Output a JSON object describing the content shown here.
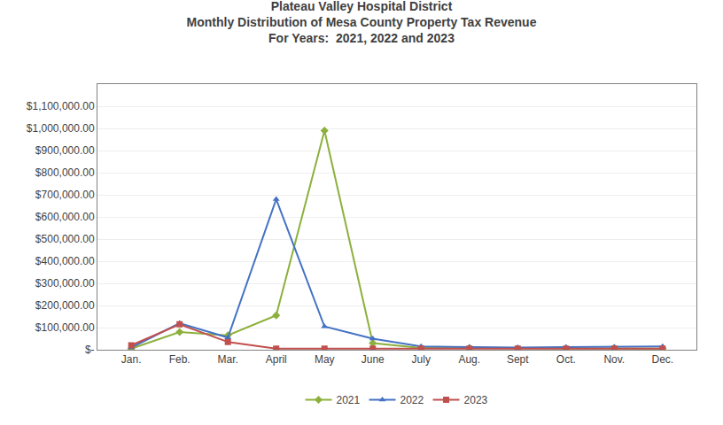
{
  "chart_data": {
    "type": "line",
    "title": "Plateau Valley Hospital District\nMonthly Distribution of Mesa County Property Tax Revenue\nFor Years:  2021, 2022 and 2023",
    "categories": [
      "Jan.",
      "Feb.",
      "Mar.",
      "April",
      "May",
      "June",
      "July",
      "Aug.",
      "Sept",
      "Oct.",
      "Nov.",
      "Dec."
    ],
    "series": [
      {
        "name": "2021",
        "color": "#8db03d",
        "marker": "diamond",
        "values": [
          5000,
          80000,
          65000,
          155000,
          990000,
          30000,
          8000,
          8000,
          5000,
          5000,
          8000,
          5000
        ]
      },
      {
        "name": "2022",
        "color": "#4472c4",
        "marker": "triangle-up",
        "values": [
          10000,
          120000,
          55000,
          680000,
          105000,
          50000,
          15000,
          12000,
          10000,
          12000,
          12000,
          15000
        ]
      },
      {
        "name": "2023",
        "color": "#c0504d",
        "marker": "square",
        "values": [
          20000,
          115000,
          35000,
          5000,
          5000,
          5000,
          5000,
          5000,
          5000,
          5000,
          5000,
          5000
        ]
      }
    ],
    "ylim": [
      0,
      1200000
    ],
    "yticks": [
      {
        "value": 0,
        "label": "$-"
      },
      {
        "value": 100000,
        "label": "$100,000.00"
      },
      {
        "value": 200000,
        "label": "$200,000.00"
      },
      {
        "value": 300000,
        "label": "$300,000.00"
      },
      {
        "value": 400000,
        "label": "$400,000.00"
      },
      {
        "value": 500000,
        "label": "$500,000.00"
      },
      {
        "value": 600000,
        "label": "$600,000.00"
      },
      {
        "value": 700000,
        "label": "$700,000.00"
      },
      {
        "value": 800000,
        "label": "$800,000.00"
      },
      {
        "value": 900000,
        "label": "$900,000.00"
      },
      {
        "value": 1000000,
        "label": "$1,000,000.00"
      },
      {
        "value": 1100000,
        "label": "$1,100,000.00"
      }
    ],
    "grid": true,
    "legend": "bottom"
  }
}
